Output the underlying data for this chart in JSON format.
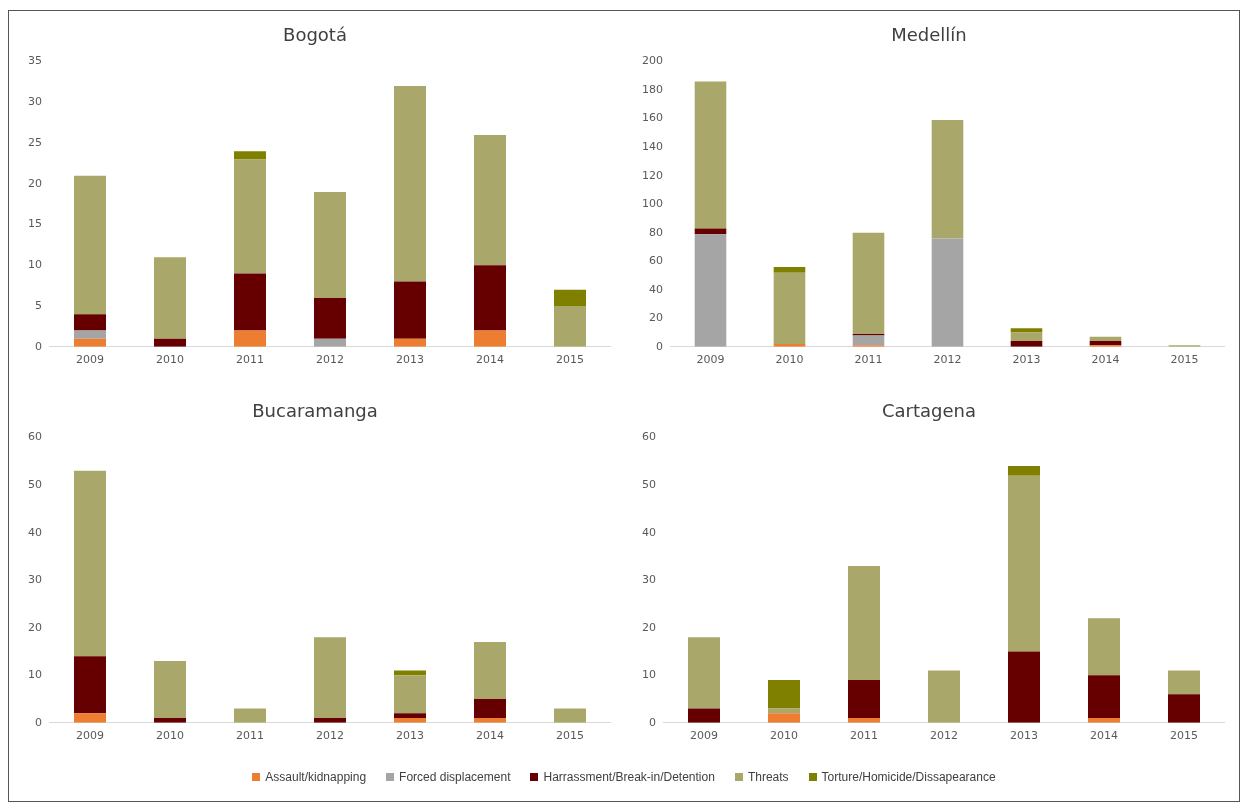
{
  "chart_data": [
    {
      "type": "bar",
      "title": "Bogotá",
      "stacked": true,
      "grid": false,
      "legend": "bottom",
      "categories": [
        "2009",
        "2010",
        "2011",
        "2012",
        "2013",
        "2014",
        "2015"
      ],
      "ylim": [
        0,
        35
      ],
      "yticks": [
        0,
        5,
        10,
        15,
        20,
        25,
        30,
        35
      ],
      "series": [
        {
          "name": "Assault/kidnapping",
          "color": "#ed7d31",
          "values": [
            1,
            0,
            2,
            0,
            1,
            2,
            0
          ]
        },
        {
          "name": "Forced displacement",
          "color": "#a5a5a5",
          "values": [
            1,
            0,
            0,
            1,
            0,
            0,
            0
          ]
        },
        {
          "name": "Harrassment/Break-in/Detention",
          "color": "#660000",
          "values": [
            2,
            1,
            7,
            5,
            7,
            8,
            0
          ]
        },
        {
          "name": "Threats",
          "color": "#a9a86a",
          "values": [
            17,
            10,
            14,
            13,
            24,
            16,
            5
          ]
        },
        {
          "name": "Torture/Homicide/Dissapearance",
          "color": "#808000",
          "values": [
            0,
            0,
            1,
            0,
            0,
            0,
            2
          ]
        }
      ]
    },
    {
      "type": "bar",
      "title": "Medellín",
      "stacked": true,
      "grid": false,
      "categories": [
        "2009",
        "2010",
        "2011",
        "2012",
        "2013",
        "2014",
        "2015"
      ],
      "ylim": [
        0,
        200
      ],
      "yticks": [
        0,
        20,
        40,
        60,
        80,
        100,
        120,
        140,
        160,
        180,
        200
      ],
      "series": [
        {
          "color": "#ed7d31",
          "values": [
            0,
            2,
            1,
            0,
            0,
            1,
            0
          ]
        },
        {
          "color": "#a5a5a5",
          "values": [
            79,
            0,
            7,
            76,
            0,
            0,
            0
          ]
        },
        {
          "color": "#660000",
          "values": [
            4,
            0,
            1,
            0,
            4,
            3,
            0
          ]
        },
        {
          "color": "#a9a86a",
          "values": [
            103,
            50,
            71,
            83,
            6,
            3,
            1
          ]
        },
        {
          "color": "#808000",
          "values": [
            0,
            4,
            0,
            0,
            3,
            0,
            0
          ]
        }
      ]
    },
    {
      "type": "bar",
      "title": "Bucaramanga",
      "stacked": true,
      "grid": false,
      "categories": [
        "2009",
        "2010",
        "2011",
        "2012",
        "2013",
        "2014",
        "2015"
      ],
      "ylim": [
        0,
        60
      ],
      "yticks": [
        0,
        10,
        20,
        30,
        40,
        50,
        60
      ],
      "series": [
        {
          "color": "#ed7d31",
          "values": [
            2,
            0,
            0,
            0,
            1,
            1,
            0
          ]
        },
        {
          "color": "#a5a5a5",
          "values": [
            0,
            0,
            0,
            0,
            0,
            0,
            0
          ]
        },
        {
          "color": "#660000",
          "values": [
            12,
            1,
            0,
            1,
            1,
            4,
            0
          ]
        },
        {
          "color": "#a9a86a",
          "values": [
            39,
            12,
            3,
            17,
            8,
            12,
            3
          ]
        },
        {
          "color": "#808000",
          "values": [
            0,
            0,
            0,
            0,
            1,
            0,
            0
          ]
        }
      ]
    },
    {
      "type": "bar",
      "title": "Cartagena",
      "stacked": true,
      "grid": false,
      "categories": [
        "2009",
        "2010",
        "2011",
        "2012",
        "2013",
        "2014",
        "2015"
      ],
      "ylim": [
        0,
        60
      ],
      "yticks": [
        0,
        10,
        20,
        30,
        40,
        50,
        60
      ],
      "series": [
        {
          "color": "#ed7d31",
          "values": [
            0,
            2,
            1,
            0,
            0,
            1,
            0
          ]
        },
        {
          "color": "#a5a5a5",
          "values": [
            0,
            0,
            0,
            0,
            0,
            0,
            0
          ]
        },
        {
          "color": "#660000",
          "values": [
            3,
            0,
            8,
            0,
            15,
            9,
            6
          ]
        },
        {
          "color": "#a9a86a",
          "values": [
            15,
            1,
            24,
            11,
            37,
            12,
            5
          ]
        },
        {
          "color": "#808000",
          "values": [
            0,
            6,
            0,
            0,
            2,
            0,
            0
          ]
        }
      ]
    }
  ]
}
